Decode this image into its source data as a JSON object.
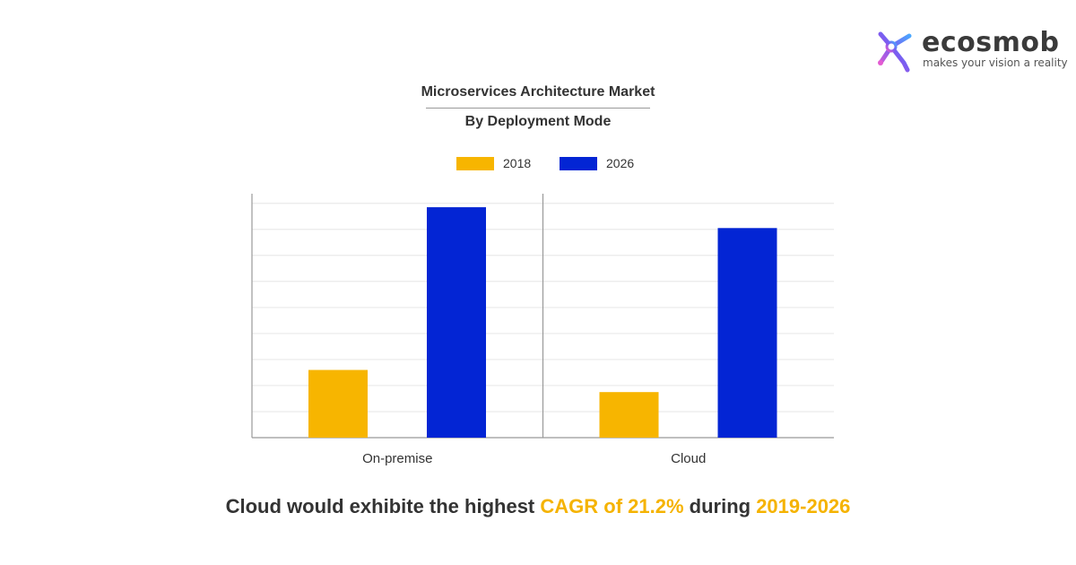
{
  "brand": {
    "name": "ecosmob",
    "tagline": "makes your vision a reality",
    "colors": {
      "mark_gradient": [
        "#e35bd2",
        "#7b5cf0",
        "#4aa8ff"
      ]
    }
  },
  "chart_data": {
    "type": "bar",
    "title": "Microservices Architecture Market",
    "subtitle": "By Deployment Mode",
    "categories": [
      "On-premise",
      "Cloud"
    ],
    "series": [
      {
        "name": "2018",
        "color": "#f7b500",
        "values": [
          2.6,
          1.75
        ]
      },
      {
        "name": "2026",
        "color": "#0325d4",
        "values": [
          8.85,
          8.05
        ]
      }
    ],
    "ylim": [
      0,
      9.3
    ],
    "gridlines": [
      1,
      2,
      3,
      4,
      5,
      6,
      7,
      8,
      9
    ],
    "grid": true,
    "legend_position": "top-center",
    "xlabel": "",
    "ylabel": ""
  },
  "footer": {
    "part1": "Cloud would exhibite the highest ",
    "highlight1": "CAGR of 21.2%",
    "part2": " during ",
    "highlight2": "2019-2026",
    "highlight_color": "#f5b300"
  }
}
